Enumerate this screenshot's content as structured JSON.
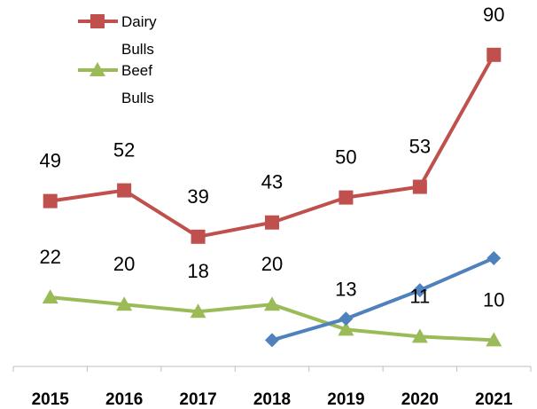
{
  "chart_data": {
    "type": "line",
    "categories": [
      "2015",
      "2016",
      "2017",
      "2018",
      "2019",
      "2020",
      "2021"
    ],
    "series": [
      {
        "name": "Dairy Bulls",
        "legend_lines": [
          "Dairy",
          "Bulls"
        ],
        "color": "#c0504d",
        "marker": "square",
        "values": [
          49,
          52,
          39,
          43,
          50,
          53,
          90
        ],
        "labels": [
          "49",
          "52",
          "39",
          "43",
          "50",
          "53",
          "90"
        ]
      },
      {
        "name": "Beef Bulls",
        "legend_lines": [
          "Beef",
          "Bulls"
        ],
        "color": "#9bbb59",
        "marker": "triangle",
        "values": [
          22,
          20,
          18,
          20,
          13,
          11,
          10
        ],
        "labels": [
          "22",
          "20",
          "18",
          "20",
          "13",
          "11",
          "10"
        ]
      },
      {
        "name": "",
        "color": "#4f81bd",
        "marker": "diamond",
        "values": [
          null,
          null,
          null,
          10,
          16,
          24,
          33
        ],
        "labels": []
      }
    ],
    "ylim": [
      0,
      100
    ],
    "grid": false,
    "legend_position": "top-left"
  }
}
